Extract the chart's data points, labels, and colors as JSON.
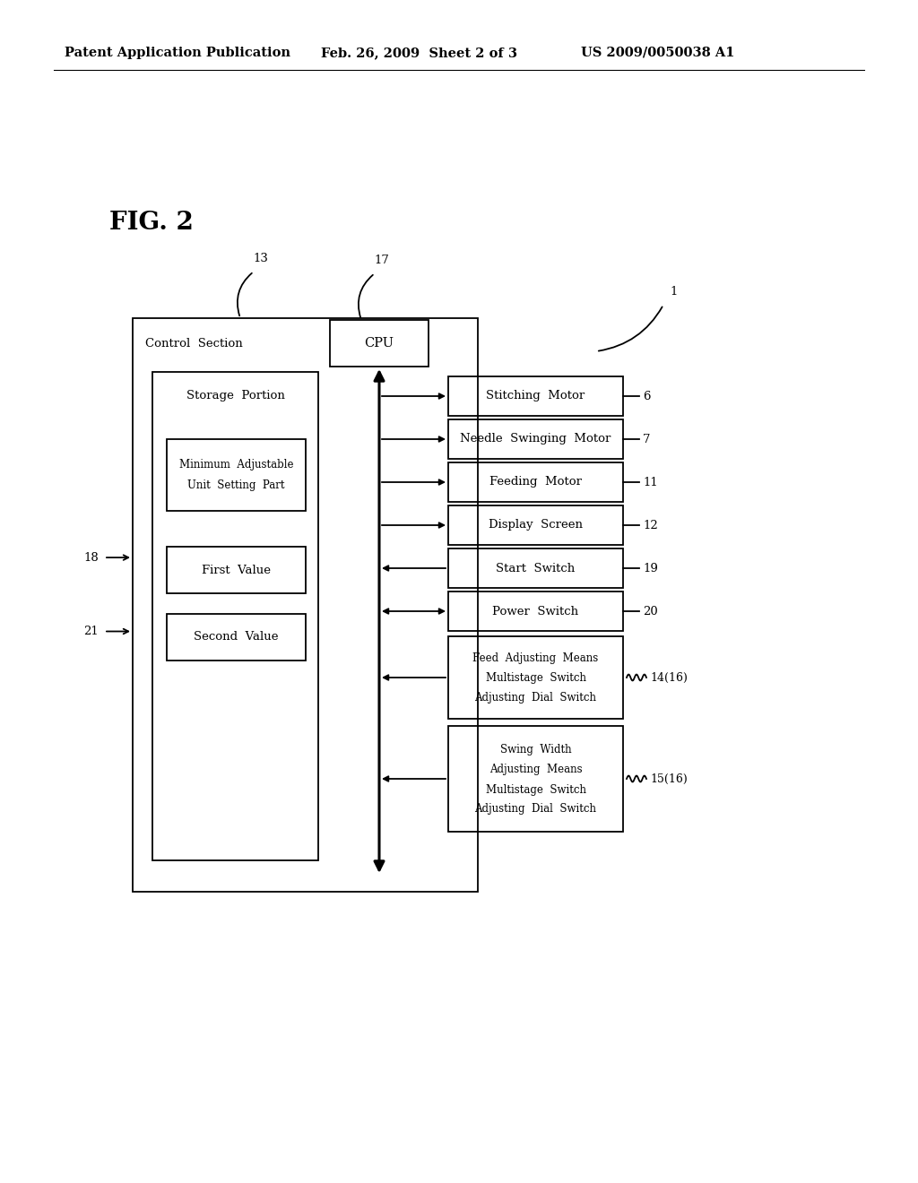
{
  "bg_color": "#ffffff",
  "header_left": "Patent Application Publication",
  "header_mid": "Feb. 26, 2009  Sheet 2 of 3",
  "header_right": "US 2009/0050038 A1",
  "fig_label": "FIG. 2",
  "label_13": "13",
  "label_17": "17",
  "label_1": "1",
  "label_18": "18",
  "label_21": "21",
  "label_6": "6",
  "label_7": "7",
  "label_11": "11",
  "label_12": "12",
  "label_19": "19",
  "label_20": "20",
  "label_1416": "14(16)",
  "label_1516": "15(16)"
}
